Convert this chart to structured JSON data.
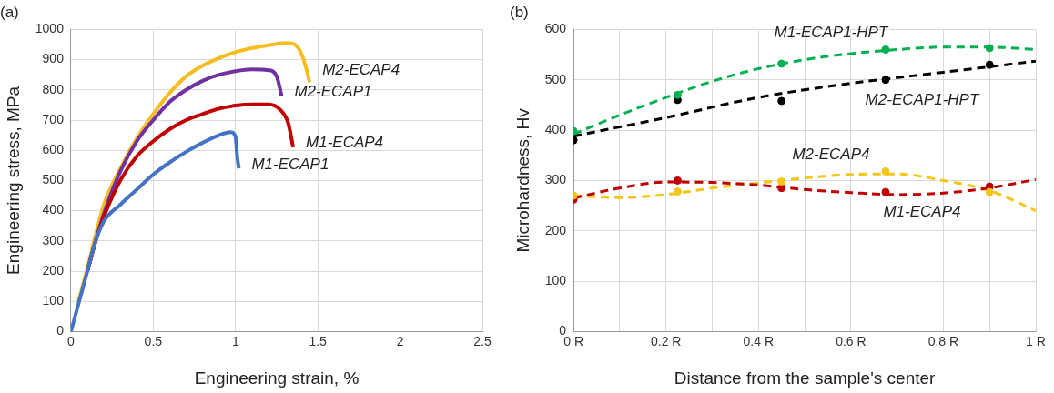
{
  "chart_data": [
    {
      "type": "line",
      "title": "(a)",
      "xlabel": "Engineering strain, %",
      "ylabel": "Engineering stress, MPa",
      "xlim": [
        0,
        2.5
      ],
      "xticks": [
        0,
        0.5,
        1,
        1.5,
        2,
        2.5
      ],
      "ylim": [
        0,
        1000
      ],
      "yticks": [
        0,
        100,
        200,
        300,
        400,
        500,
        600,
        700,
        800,
        900,
        1000
      ],
      "grid": true,
      "legend": false,
      "marker": "none",
      "line_style": "solid",
      "series": [
        {
          "name": "M2-ECAP4",
          "color": "#f5bd1f",
          "x": [
            0.045,
            0.1,
            0.15,
            0.2,
            0.3,
            0.4,
            0.5,
            0.6,
            0.7,
            0.8,
            0.9,
            1.0,
            1.1,
            1.2,
            1.3,
            1.35,
            1.4,
            1.43,
            1.45
          ],
          "values": [
            100,
            210,
            320,
            420,
            540,
            640,
            720,
            790,
            845,
            880,
            905,
            925,
            938,
            948,
            955,
            953,
            920,
            870,
            825
          ]
        },
        {
          "name": "M2-ECAP1",
          "color": "#7030a0",
          "x": [
            0.1,
            0.15,
            0.2,
            0.3,
            0.4,
            0.5,
            0.6,
            0.7,
            0.8,
            0.9,
            1.0,
            1.1,
            1.2,
            1.25,
            1.28
          ],
          "values": [
            200,
            300,
            390,
            530,
            630,
            700,
            760,
            800,
            830,
            850,
            862,
            868,
            865,
            845,
            780
          ]
        },
        {
          "name": "M1-ECAP4",
          "color": "#c00000",
          "x": [
            0.1,
            0.15,
            0.2,
            0.3,
            0.4,
            0.5,
            0.6,
            0.7,
            0.8,
            0.9,
            1.0,
            1.1,
            1.2,
            1.27,
            1.32,
            1.35
          ],
          "values": [
            200,
            300,
            380,
            500,
            580,
            630,
            670,
            700,
            720,
            738,
            748,
            752,
            752,
            735,
            690,
            610
          ]
        },
        {
          "name": "M1-ECAP1",
          "color": "#4472c4",
          "x": [
            0,
            0.05,
            0.1,
            0.15,
            0.2,
            0.3,
            0.4,
            0.5,
            0.6,
            0.7,
            0.8,
            0.9,
            0.97,
            1.0,
            1.01,
            1.02
          ],
          "values": [
            0,
            100,
            200,
            300,
            365,
            420,
            470,
            520,
            560,
            595,
            625,
            650,
            660,
            645,
            580,
            540
          ]
        }
      ]
    },
    {
      "type": "scatter",
      "title": "(b)",
      "xlabel": "Distance from the sample's center",
      "ylabel": "Microhardness, Hv",
      "xlim": [
        0,
        1
      ],
      "xticks": [
        {
          "value": 0,
          "label": "0 R"
        },
        {
          "value": 0.1,
          "label": null
        },
        {
          "value": 0.2,
          "label": "0.2 R"
        },
        {
          "value": 0.3,
          "label": null
        },
        {
          "value": 0.4,
          "label": "0.4 R"
        },
        {
          "value": 0.5,
          "label": null
        },
        {
          "value": 0.6,
          "label": "0.6 R"
        },
        {
          "value": 0.7,
          "label": null
        },
        {
          "value": 0.8,
          "label": "0.8 R"
        },
        {
          "value": 0.9,
          "label": null
        },
        {
          "value": 1,
          "label": "1 R"
        }
      ],
      "ylim": [
        0,
        600
      ],
      "yticks": [
        0,
        100,
        200,
        300,
        400,
        500,
        600
      ],
      "grid": true,
      "legend": false,
      "marker": "circle",
      "series": [
        {
          "name": "M1-ECAP1-HPT",
          "color": "#00b050",
          "x": [
            0,
            0.225,
            0.45,
            0.675,
            0.9
          ],
          "values": [
            398,
            470,
            532,
            560,
            563
          ]
        },
        {
          "name": "M2-ECAP1-HPT",
          "color": "#000000",
          "x": [
            0,
            0.225,
            0.45,
            0.675,
            0.9
          ],
          "values": [
            380,
            460,
            458,
            500,
            530
          ]
        },
        {
          "name": "M2-ECAP4",
          "color": "#f5c518",
          "x": [
            0,
            0.225,
            0.45,
            0.675,
            0.9
          ],
          "values": [
            270,
            278,
            298,
            318,
            277
          ]
        },
        {
          "name": "M1-ECAP4",
          "color": "#c00000",
          "x": [
            0,
            0.225,
            0.45,
            0.675,
            0.9
          ],
          "values": [
            262,
            300,
            285,
            277,
            288
          ]
        },
        {
          "type": "line",
          "line_style": "dashed",
          "marker": "none",
          "color": "#00b050",
          "x": [
            0,
            0.1,
            0.2,
            0.3,
            0.4,
            0.5,
            0.6,
            0.7,
            0.8,
            0.9,
            1
          ],
          "values": [
            392,
            430,
            465,
            497,
            522,
            540,
            552,
            560,
            565,
            565,
            560
          ]
        },
        {
          "type": "line",
          "line_style": "dashed",
          "marker": "none",
          "color": "#000000",
          "x": [
            0,
            0.2,
            0.4,
            0.6,
            0.8,
            1
          ],
          "values": [
            388,
            425,
            465,
            493,
            515,
            537
          ]
        },
        {
          "type": "line",
          "line_style": "dashed",
          "marker": "none",
          "color": "#f5c518",
          "x": [
            0,
            0.1,
            0.2,
            0.3,
            0.4,
            0.5,
            0.6,
            0.7,
            0.8,
            0.9,
            1
          ],
          "values": [
            270,
            266,
            272,
            285,
            295,
            305,
            312,
            313,
            300,
            280,
            240
          ]
        },
        {
          "type": "line",
          "line_style": "dashed",
          "marker": "none",
          "color": "#c00000",
          "x": [
            0,
            0.1,
            0.2,
            0.3,
            0.4,
            0.5,
            0.6,
            0.7,
            0.8,
            0.9,
            1
          ],
          "values": [
            265,
            285,
            297,
            296,
            291,
            282,
            276,
            272,
            275,
            285,
            302
          ]
        }
      ]
    }
  ]
}
